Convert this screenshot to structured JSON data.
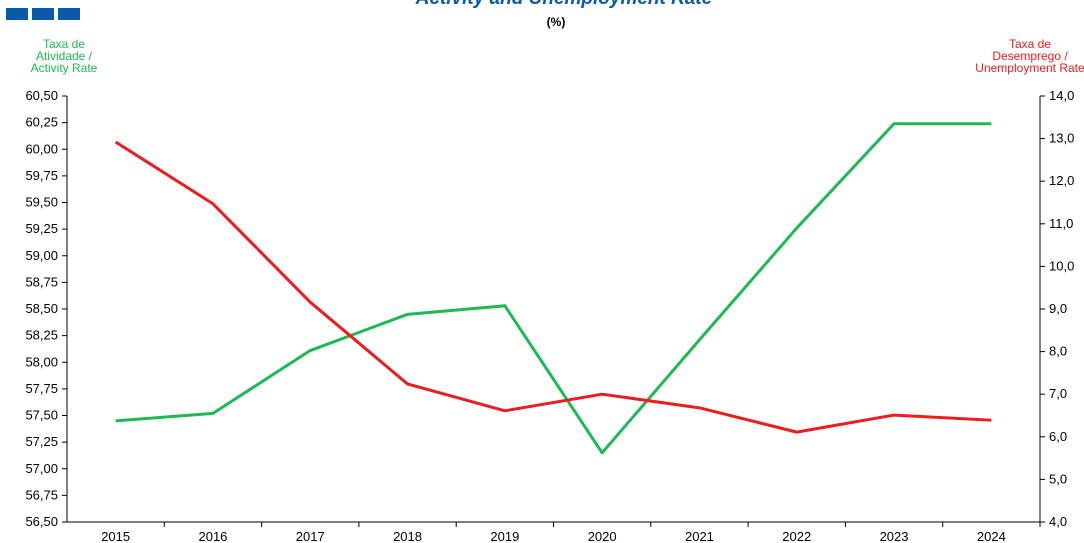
{
  "chart_data": {
    "type": "line",
    "title": "Activity and Unemployment Rate",
    "subtitle": "(%)",
    "y_label": [
      "Taxa de",
      "Atividade /",
      "Activity Rate"
    ],
    "y2_label": [
      "Taxa de",
      "Desemprego /",
      "Unemployment Rate"
    ],
    "categories": [
      "2015",
      "2016",
      "2017",
      "2018",
      "2019",
      "2020",
      "2021",
      "2022",
      "2023",
      "2024"
    ],
    "series": [
      {
        "name": "Activity Rate",
        "color": "#1db954",
        "values": [
          57.45,
          57.52,
          58.11,
          58.45,
          58.53,
          57.15,
          58.21,
          59.26,
          60.24,
          60.24
        ]
      },
      {
        "name": "Unemployment Rate",
        "color": "#ee1c1c",
        "axis": "y2",
        "values": [
          12.92,
          11.47,
          9.16,
          7.24,
          6.61,
          7.0,
          6.68,
          6.11,
          6.51,
          6.39
        ]
      }
    ],
    "ylim": [
      56.5,
      60.5
    ],
    "yticks": [
      {
        "value": 56.5,
        "label": "56,50"
      },
      {
        "value": 56.75,
        "label": "56,75"
      },
      {
        "value": 57,
        "label": "57,00"
      },
      {
        "value": 57.25,
        "label": "57,25"
      },
      {
        "value": 57.5,
        "label": "57,50"
      },
      {
        "value": 57.75,
        "label": "57,75"
      },
      {
        "value": 58,
        "label": "58,00"
      },
      {
        "value": 58.25,
        "label": "58,25"
      },
      {
        "value": 58.5,
        "label": "58,50"
      },
      {
        "value": 58.75,
        "label": "58,75"
      },
      {
        "value": 59,
        "label": "59,00"
      },
      {
        "value": 59.25,
        "label": "59,25"
      },
      {
        "value": 59.5,
        "label": "59,50"
      },
      {
        "value": 59.75,
        "label": "59,75"
      },
      {
        "value": 60,
        "label": "60,00"
      },
      {
        "value": 60.25,
        "label": "60,25"
      },
      {
        "value": 60.5,
        "label": "60,50"
      }
    ],
    "y2lim": [
      4,
      14
    ],
    "y2ticks": [
      {
        "value": 4,
        "label": "4,0"
      },
      {
        "value": 5,
        "label": "5,0"
      },
      {
        "value": 6,
        "label": "6,0"
      },
      {
        "value": 7,
        "label": "7,0"
      },
      {
        "value": 8,
        "label": "8,0"
      },
      {
        "value": 9,
        "label": "9,0"
      },
      {
        "value": 10,
        "label": "10,0"
      },
      {
        "value": 11,
        "label": "11,0"
      },
      {
        "value": 12,
        "label": "12,0"
      },
      {
        "value": 13,
        "label": "13,0"
      },
      {
        "value": 14,
        "label": "14,0"
      }
    ]
  }
}
